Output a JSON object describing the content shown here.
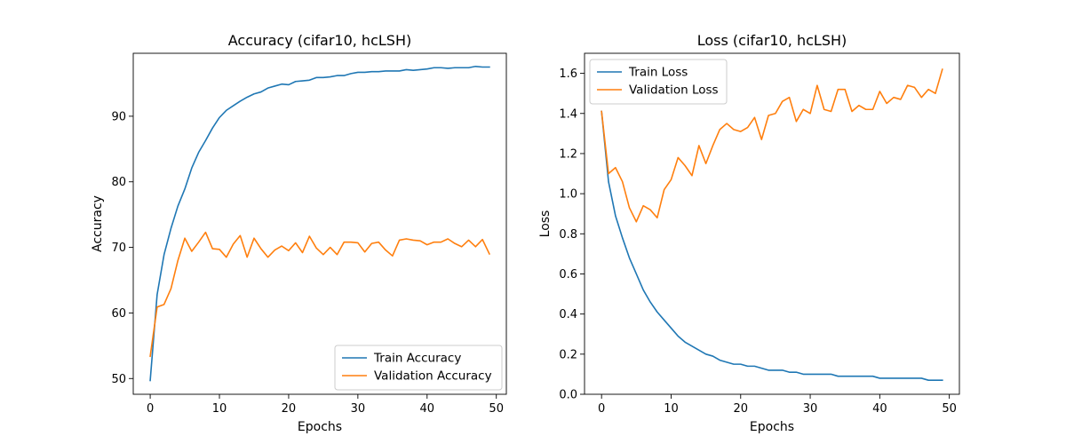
{
  "colors": {
    "train": "#1f77b4",
    "validation": "#ff7f0e"
  },
  "chart_data": [
    {
      "type": "line",
      "title": "Accuracy (cifar10, hcLSH)",
      "xlabel": "Epochs",
      "ylabel": "Accuracy",
      "xlim": [
        -2.45,
        51.45
      ],
      "ylim": [
        47.6,
        99.6
      ],
      "xticks": [
        0,
        10,
        20,
        30,
        40,
        50
      ],
      "yticks": [
        50,
        60,
        70,
        80,
        90
      ],
      "legend_position": "lower-right",
      "x": [
        0,
        1,
        2,
        3,
        4,
        5,
        6,
        7,
        8,
        9,
        10,
        11,
        12,
        13,
        14,
        15,
        16,
        17,
        18,
        19,
        20,
        21,
        22,
        23,
        24,
        25,
        26,
        27,
        28,
        29,
        30,
        31,
        32,
        33,
        34,
        35,
        36,
        37,
        38,
        39,
        40,
        41,
        42,
        43,
        44,
        45,
        46,
        47,
        48,
        49
      ],
      "series": [
        {
          "name": "Train Accuracy",
          "color_key": "train",
          "values": [
            49.7,
            62.8,
            68.9,
            72.9,
            76.3,
            78.9,
            82.1,
            84.5,
            86.3,
            88.2,
            89.8,
            90.9,
            91.6,
            92.3,
            92.9,
            93.4,
            93.7,
            94.3,
            94.6,
            94.9,
            94.8,
            95.3,
            95.4,
            95.5,
            95.9,
            95.9,
            96.0,
            96.2,
            96.2,
            96.5,
            96.7,
            96.7,
            96.8,
            96.8,
            96.9,
            96.9,
            96.9,
            97.1,
            97.0,
            97.1,
            97.2,
            97.4,
            97.4,
            97.3,
            97.4,
            97.4,
            97.4,
            97.6,
            97.5,
            97.5
          ]
        },
        {
          "name": "Validation Accuracy",
          "color_key": "validation",
          "values": [
            53.4,
            60.9,
            61.3,
            63.7,
            68.0,
            71.4,
            69.4,
            70.8,
            72.3,
            69.8,
            69.7,
            68.5,
            70.5,
            71.8,
            68.5,
            71.4,
            69.8,
            68.5,
            69.6,
            70.2,
            69.5,
            70.7,
            69.2,
            71.7,
            69.9,
            68.9,
            70.0,
            68.9,
            70.8,
            70.8,
            70.7,
            69.3,
            70.6,
            70.8,
            69.6,
            68.7,
            71.1,
            71.3,
            71.1,
            71.0,
            70.4,
            70.8,
            70.8,
            71.3,
            70.6,
            70.1,
            71.1,
            70.1,
            71.2,
            69.0
          ]
        }
      ]
    },
    {
      "type": "line",
      "title": "Loss (cifar10, hcLSH)",
      "xlabel": "Epochs",
      "ylabel": "Loss",
      "xlim": [
        -2.45,
        51.45
      ],
      "ylim": [
        0.0,
        1.7
      ],
      "xticks": [
        0,
        10,
        20,
        30,
        40,
        50
      ],
      "yticks": [
        0.0,
        0.2,
        0.4,
        0.6,
        0.8,
        1.0,
        1.2,
        1.4,
        1.6
      ],
      "legend_position": "upper-left",
      "x": [
        0,
        1,
        2,
        3,
        4,
        5,
        6,
        7,
        8,
        9,
        10,
        11,
        12,
        13,
        14,
        15,
        16,
        17,
        18,
        19,
        20,
        21,
        22,
        23,
        24,
        25,
        26,
        27,
        28,
        29,
        30,
        31,
        32,
        33,
        34,
        35,
        36,
        37,
        38,
        39,
        40,
        41,
        42,
        43,
        44,
        45,
        46,
        47,
        48,
        49
      ],
      "series": [
        {
          "name": "Train Loss",
          "color_key": "train",
          "values": [
            1.41,
            1.06,
            0.89,
            0.78,
            0.68,
            0.6,
            0.52,
            0.46,
            0.41,
            0.37,
            0.33,
            0.29,
            0.26,
            0.24,
            0.22,
            0.2,
            0.19,
            0.17,
            0.16,
            0.15,
            0.15,
            0.14,
            0.14,
            0.13,
            0.12,
            0.12,
            0.12,
            0.11,
            0.11,
            0.1,
            0.1,
            0.1,
            0.1,
            0.1,
            0.09,
            0.09,
            0.09,
            0.09,
            0.09,
            0.09,
            0.08,
            0.08,
            0.08,
            0.08,
            0.08,
            0.08,
            0.08,
            0.07,
            0.07,
            0.07
          ]
        },
        {
          "name": "Validation Loss",
          "color_key": "validation",
          "values": [
            1.41,
            1.1,
            1.13,
            1.06,
            0.93,
            0.86,
            0.94,
            0.92,
            0.88,
            1.02,
            1.07,
            1.18,
            1.14,
            1.09,
            1.24,
            1.15,
            1.24,
            1.32,
            1.35,
            1.32,
            1.31,
            1.33,
            1.38,
            1.27,
            1.39,
            1.4,
            1.46,
            1.48,
            1.36,
            1.42,
            1.4,
            1.54,
            1.42,
            1.41,
            1.52,
            1.52,
            1.41,
            1.44,
            1.42,
            1.42,
            1.51,
            1.45,
            1.48,
            1.47,
            1.54,
            1.53,
            1.48,
            1.52,
            1.5,
            1.62
          ]
        }
      ]
    }
  ]
}
